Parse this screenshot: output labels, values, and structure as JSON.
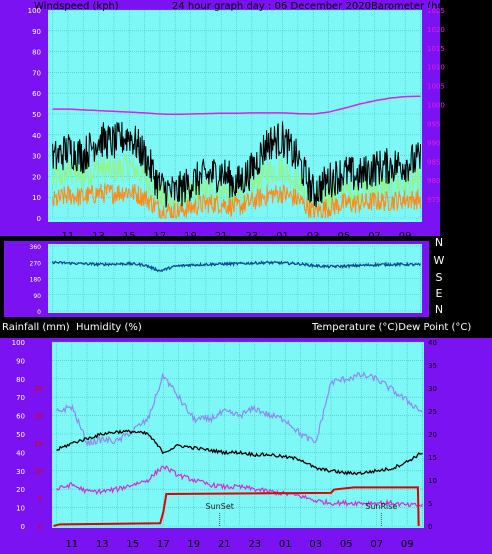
{
  "header": {
    "left": "Windspeed (kph)",
    "center": "24 hour graph day : 06 December 2020",
    "right": "Barometer (hpa)"
  },
  "colors": {
    "frame": "#7a12f2",
    "plot_bg": "#7ef7f7",
    "grid": "#4fbfbf",
    "wind_avg": "#ff8c1a",
    "wind_gust": "#8ff58f",
    "wind_max": "#000000",
    "barometer": "#e020e0",
    "direction": "#0f4f8f",
    "humidity": "#8c8cf0",
    "temperature": "#000000",
    "dewpoint": "#d030d0",
    "rainfall": "#e00000",
    "left_tick": "#ffffff",
    "right_tick": "#e020e0",
    "rain_tick": "#e00000"
  },
  "x_ticks": [
    "11",
    "13",
    "15",
    "17",
    "19",
    "21",
    "23",
    "01",
    "03",
    "05",
    "07",
    "09"
  ],
  "chart_data": [
    {
      "type": "line",
      "name": "wind-barometer",
      "ylabel": "Windspeed (kph)",
      "y2label": "Barometer (hpa)",
      "ylim": [
        0,
        100
      ],
      "y_ticks": [
        0,
        10,
        20,
        30,
        40,
        50,
        60,
        70,
        80,
        90,
        100
      ],
      "y2lim": [
        970,
        1025
      ],
      "y2_ticks": [
        975,
        980,
        985,
        990,
        995,
        1000,
        1005,
        1010,
        1015,
        1020,
        1025
      ],
      "x_hours": [
        10,
        11,
        12,
        13,
        14,
        15,
        16,
        17,
        18,
        19,
        20,
        21,
        22,
        23,
        24,
        25,
        26,
        27,
        28,
        29,
        30,
        31,
        32,
        33,
        34
      ],
      "series": [
        {
          "key": "max",
          "values": [
            28,
            33,
            30,
            38,
            36,
            40,
            30,
            15,
            12,
            17,
            20,
            22,
            16,
            23,
            36,
            38,
            28,
            12,
            18,
            22,
            20,
            24,
            25,
            26,
            28
          ]
        },
        {
          "key": "gust",
          "values": [
            18,
            22,
            20,
            24,
            23,
            25,
            20,
            10,
            8,
            11,
            13,
            14,
            10,
            15,
            22,
            24,
            17,
            8,
            11,
            13,
            13,
            15,
            16,
            16,
            18
          ]
        },
        {
          "key": "avg",
          "values": [
            8,
            11,
            10,
            12,
            12,
            13,
            10,
            4,
            3,
            5,
            7,
            7,
            5,
            8,
            11,
            12,
            9,
            3,
            5,
            7,
            7,
            8,
            8,
            9,
            9
          ]
        },
        {
          "key": "barometer",
          "values": [
            998.8,
            998.8,
            998.6,
            998.4,
            998.2,
            998.0,
            997.8,
            997.5,
            997.4,
            997.5,
            997.6,
            997.7,
            997.7,
            997.8,
            997.8,
            997.8,
            997.6,
            997.5,
            998.0,
            999.0,
            1000.1,
            1001.0,
            1001.7,
            1002.1,
            1002.2
          ]
        }
      ]
    },
    {
      "type": "line",
      "name": "wind-direction",
      "y_ticks_right": [
        "N",
        "W",
        "S",
        "E",
        "N"
      ],
      "ylim": [
        0,
        360
      ],
      "x_hours": [
        10,
        11,
        12,
        13,
        14,
        15,
        16,
        17,
        18,
        19,
        20,
        21,
        22,
        23,
        24,
        25,
        26,
        27,
        28,
        29,
        30,
        31,
        32,
        33,
        34
      ],
      "series": [
        {
          "key": "direction",
          "values": [
            270,
            265,
            262,
            258,
            260,
            262,
            255,
            222,
            248,
            255,
            258,
            260,
            262,
            265,
            268,
            266,
            262,
            252,
            246,
            248,
            252,
            256,
            258,
            258,
            256
          ]
        }
      ]
    },
    {
      "type": "line",
      "name": "temperature-humidity",
      "left_label": "Rainfall (mm)  Humidity (%)",
      "right_label": "Temperature (°C)Dew Point (°C)",
      "humidity_ticks": [
        0,
        10,
        20,
        30,
        40,
        50,
        60,
        70,
        80,
        90,
        100
      ],
      "rain_ticks": [
        0,
        5,
        10,
        15,
        20,
        25
      ],
      "temp_ticks": [
        0,
        5,
        10,
        15,
        20,
        25,
        30,
        35,
        40
      ],
      "ylim": [
        0,
        100
      ],
      "rain_lim": [
        0,
        33.3
      ],
      "temp_lim": [
        0,
        40
      ],
      "x_hours": [
        10,
        11,
        12,
        13,
        14,
        15,
        16,
        17,
        18,
        19,
        20,
        21,
        22,
        23,
        24,
        25,
        26,
        27,
        28,
        29,
        30,
        31,
        32,
        33,
        34
      ],
      "series": [
        {
          "key": "humidity",
          "values": [
            62,
            65,
            45,
            47,
            46,
            52,
            58,
            82,
            70,
            58,
            58,
            62,
            60,
            64,
            60,
            58,
            50,
            45,
            78,
            80,
            82,
            80,
            74,
            68,
            62
          ]
        },
        {
          "key": "temperature",
          "values": [
            16.5,
            18,
            19,
            20,
            20.5,
            20.5,
            20,
            16,
            17.5,
            17,
            16.5,
            16,
            16,
            15.5,
            15.5,
            15,
            14.5,
            12.5,
            12,
            11.5,
            11.5,
            12,
            12.5,
            14,
            16
          ]
        },
        {
          "key": "dewpoint",
          "values": [
            8,
            9,
            7.5,
            7.5,
            8,
            9,
            10,
            13,
            11,
            10,
            9,
            8.5,
            8.5,
            8,
            7.5,
            7,
            6.5,
            5.5,
            5,
            5,
            5,
            5,
            5,
            4.5,
            4.5
          ]
        },
        {
          "key": "rainfall",
          "values": [
            0,
            0.3,
            0.3,
            0.3,
            0.3,
            0.4,
            0.5,
            5.8,
            6.0,
            6.0,
            6.0,
            6.0,
            6.0,
            6.0,
            6.0,
            6.0,
            6.2,
            6.2,
            6.6,
            7.0,
            7.0,
            7.0,
            7.0,
            7.0,
            0
          ]
        }
      ],
      "annotations": [
        {
          "label": "SunSet",
          "hour": 20.7
        },
        {
          "label": "SunRise",
          "hour": 31.3
        }
      ]
    }
  ]
}
